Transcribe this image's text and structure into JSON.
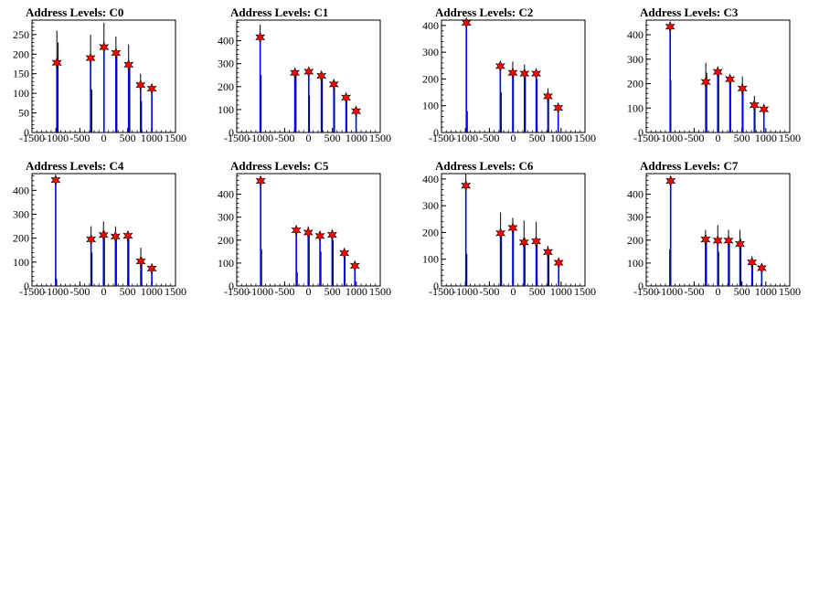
{
  "chart_data": [
    {
      "type": "bar",
      "title": "Address Levels: C0",
      "xlim": [
        -1500,
        1500
      ],
      "ylim": [
        0,
        287
      ],
      "yticks": [
        0,
        50,
        100,
        150,
        200,
        250
      ],
      "xticks": [
        -1500,
        -1000,
        -500,
        0,
        500,
        1000,
        1500
      ],
      "black_spikes": [
        [
          -980,
          260
        ],
        [
          -955,
          230
        ],
        [
          -275,
          250
        ],
        [
          -250,
          110
        ],
        [
          5,
          280
        ],
        [
          10,
          175
        ],
        [
          255,
          245
        ],
        [
          275,
          205
        ],
        [
          520,
          225
        ],
        [
          545,
          175
        ],
        [
          770,
          150
        ],
        [
          790,
          80
        ],
        [
          1005,
          105
        ]
      ],
      "blue_spikes": [
        [
          -980,
          175
        ],
        [
          -275,
          185
        ],
        [
          5,
          215
        ],
        [
          255,
          200
        ],
        [
          520,
          170
        ],
        [
          770,
          120
        ],
        [
          1005,
          110
        ]
      ],
      "peaks": [
        [
          -980,
          178
        ],
        [
          -275,
          190
        ],
        [
          5,
          218
        ],
        [
          255,
          203
        ],
        [
          520,
          173
        ],
        [
          770,
          121
        ],
        [
          1005,
          112
        ]
      ],
      "colors": {
        "black": "#000000",
        "blue": "#0000ff",
        "star": "#ff0000"
      }
    },
    {
      "type": "bar",
      "title": "Address Levels: C1",
      "xlim": [
        -1500,
        1500
      ],
      "ylim": [
        0,
        490
      ],
      "yticks": [
        0,
        100,
        200,
        300,
        400
      ],
      "xticks": [
        -1500,
        -1000,
        -500,
        0,
        500,
        1000,
        1500
      ],
      "black_spikes": [
        [
          -1010,
          470
        ],
        [
          -990,
          250
        ],
        [
          -285,
          275
        ],
        [
          -260,
          260
        ],
        [
          5,
          270
        ],
        [
          20,
          160
        ],
        [
          270,
          255
        ],
        [
          290,
          240
        ],
        [
          530,
          230
        ],
        [
          545,
          210
        ],
        [
          785,
          165
        ],
        [
          800,
          140
        ],
        [
          995,
          110
        ]
      ],
      "blue_spikes": [
        [
          -1010,
          415
        ],
        [
          -285,
          260
        ],
        [
          5,
          260
        ],
        [
          270,
          250
        ],
        [
          530,
          210
        ],
        [
          785,
          150
        ],
        [
          995,
          90
        ]
      ],
      "peaks": [
        [
          -1010,
          415
        ],
        [
          -285,
          260
        ],
        [
          5,
          265
        ],
        [
          270,
          247
        ],
        [
          530,
          210
        ],
        [
          785,
          152
        ],
        [
          995,
          93
        ]
      ],
      "colors": {
        "black": "#000000",
        "blue": "#0000ff",
        "star": "#ff0000"
      }
    },
    {
      "type": "bar",
      "title": "Address Levels: C2",
      "xlim": [
        -1500,
        1500
      ],
      "ylim": [
        0,
        420
      ],
      "yticks": [
        0,
        100,
        200,
        300,
        400
      ],
      "xticks": [
        -1500,
        -1000,
        -500,
        0,
        500,
        1000,
        1500
      ],
      "black_spikes": [
        [
          -980,
          420
        ],
        [
          -960,
          80
        ],
        [
          -270,
          255
        ],
        [
          -250,
          150
        ],
        [
          -10,
          265
        ],
        [
          5,
          230
        ],
        [
          235,
          255
        ],
        [
          255,
          210
        ],
        [
          480,
          235
        ],
        [
          500,
          200
        ],
        [
          725,
          165
        ],
        [
          740,
          130
        ],
        [
          940,
          100
        ]
      ],
      "blue_spikes": [
        [
          -980,
          405
        ],
        [
          -270,
          245
        ],
        [
          -10,
          220
        ],
        [
          235,
          215
        ],
        [
          480,
          215
        ],
        [
          725,
          130
        ],
        [
          940,
          90
        ]
      ],
      "peaks": [
        [
          -980,
          410
        ],
        [
          -270,
          248
        ],
        [
          -10,
          223
        ],
        [
          235,
          220
        ],
        [
          480,
          220
        ],
        [
          725,
          135
        ],
        [
          940,
          92
        ]
      ],
      "colors": {
        "black": "#000000",
        "blue": "#0000ff",
        "star": "#ff0000"
      }
    },
    {
      "type": "bar",
      "title": "Address Levels: C3",
      "xlim": [
        -1500,
        1500
      ],
      "ylim": [
        0,
        460
      ],
      "yticks": [
        0,
        100,
        200,
        300,
        400
      ],
      "xticks": [
        -1500,
        -1000,
        -500,
        0,
        500,
        1000,
        1500
      ],
      "black_spikes": [
        [
          -1000,
          445
        ],
        [
          -985,
          215
        ],
        [
          -255,
          285
        ],
        [
          -235,
          245
        ],
        [
          -5,
          270
        ],
        [
          15,
          240
        ],
        [
          250,
          235
        ],
        [
          265,
          210
        ],
        [
          510,
          230
        ],
        [
          525,
          175
        ],
        [
          760,
          150
        ],
        [
          775,
          120
        ],
        [
          960,
          110
        ]
      ],
      "blue_spikes": [
        [
          -1000,
          430
        ],
        [
          -255,
          205
        ],
        [
          -5,
          245
        ],
        [
          250,
          215
        ],
        [
          510,
          180
        ],
        [
          760,
          110
        ],
        [
          960,
          95
        ]
      ],
      "peaks": [
        [
          -1000,
          433
        ],
        [
          -255,
          207
        ],
        [
          -5,
          248
        ],
        [
          250,
          218
        ],
        [
          510,
          180
        ],
        [
          760,
          112
        ],
        [
          960,
          95
        ]
      ],
      "colors": {
        "black": "#000000",
        "blue": "#0000ff",
        "star": "#ff0000"
      }
    },
    {
      "type": "bar",
      "title": "Address Levels: C4",
      "xlim": [
        -1500,
        1500
      ],
      "ylim": [
        0,
        470
      ],
      "yticks": [
        0,
        100,
        200,
        300,
        400
      ],
      "xticks": [
        -1500,
        -1000,
        -500,
        0,
        500,
        1000,
        1500
      ],
      "black_spikes": [
        [
          -1005,
          450
        ],
        [
          -985,
          30
        ],
        [
          -265,
          250
        ],
        [
          -245,
          140
        ],
        [
          -5,
          270
        ],
        [
          15,
          230
        ],
        [
          245,
          250
        ],
        [
          265,
          210
        ],
        [
          505,
          230
        ],
        [
          525,
          200
        ],
        [
          775,
          160
        ],
        [
          795,
          120
        ],
        [
          1005,
          90
        ]
      ],
      "blue_spikes": [
        [
          -1005,
          440
        ],
        [
          -265,
          195
        ],
        [
          -5,
          210
        ],
        [
          245,
          205
        ],
        [
          505,
          210
        ],
        [
          775,
          100
        ],
        [
          1005,
          70
        ]
      ],
      "peaks": [
        [
          -1005,
          443
        ],
        [
          -265,
          195
        ],
        [
          -5,
          213
        ],
        [
          245,
          207
        ],
        [
          505,
          210
        ],
        [
          775,
          103
        ],
        [
          1005,
          73
        ]
      ],
      "colors": {
        "black": "#000000",
        "blue": "#0000ff",
        "star": "#ff0000"
      }
    },
    {
      "type": "bar",
      "title": "Address Levels: C5",
      "xlim": [
        -1500,
        1500
      ],
      "ylim": [
        0,
        490
      ],
      "yticks": [
        0,
        100,
        200,
        300,
        400
      ],
      "xticks": [
        -1500,
        -1000,
        -500,
        0,
        500,
        1000,
        1500
      ],
      "black_spikes": [
        [
          -1000,
          475
        ],
        [
          -980,
          160
        ],
        [
          -255,
          255
        ],
        [
          -235,
          60
        ],
        [
          -5,
          260
        ],
        [
          15,
          230
        ],
        [
          240,
          240
        ],
        [
          260,
          150
        ],
        [
          495,
          245
        ],
        [
          515,
          200
        ],
        [
          750,
          160
        ],
        [
          765,
          130
        ],
        [
          970,
          100
        ]
      ],
      "blue_spikes": [
        [
          -1000,
          455
        ],
        [
          -255,
          240
        ],
        [
          -5,
          230
        ],
        [
          240,
          215
        ],
        [
          495,
          220
        ],
        [
          750,
          140
        ],
        [
          970,
          85
        ]
      ],
      "peaks": [
        [
          -1000,
          458
        ],
        [
          -255,
          243
        ],
        [
          -5,
          233
        ],
        [
          240,
          218
        ],
        [
          495,
          223
        ],
        [
          750,
          143
        ],
        [
          970,
          88
        ]
      ],
      "colors": {
        "black": "#000000",
        "blue": "#0000ff",
        "star": "#ff0000"
      }
    },
    {
      "type": "bar",
      "title": "Address Levels: C6",
      "xlim": [
        -1500,
        1500
      ],
      "ylim": [
        0,
        420
      ],
      "yticks": [
        0,
        100,
        200,
        300,
        400
      ],
      "xticks": [
        -1500,
        -1000,
        -500,
        0,
        500,
        1000,
        1500
      ],
      "black_spikes": [
        [
          -990,
          420
        ],
        [
          -970,
          120
        ],
        [
          -265,
          275
        ],
        [
          -245,
          200
        ],
        [
          -10,
          255
        ],
        [
          5,
          230
        ],
        [
          225,
          245
        ],
        [
          245,
          180
        ],
        [
          480,
          240
        ],
        [
          500,
          170
        ],
        [
          725,
          150
        ],
        [
          745,
          125
        ],
        [
          950,
          100
        ]
      ],
      "blue_spikes": [
        [
          -990,
          370
        ],
        [
          -265,
          195
        ],
        [
          -10,
          215
        ],
        [
          225,
          160
        ],
        [
          480,
          165
        ],
        [
          725,
          125
        ],
        [
          950,
          85
        ]
      ],
      "peaks": [
        [
          -990,
          375
        ],
        [
          -265,
          197
        ],
        [
          -10,
          217
        ],
        [
          225,
          163
        ],
        [
          480,
          167
        ],
        [
          725,
          127
        ],
        [
          950,
          87
        ]
      ],
      "colors": {
        "black": "#000000",
        "blue": "#0000ff",
        "star": "#ff0000"
      }
    },
    {
      "type": "bar",
      "title": "Address Levels: C7",
      "xlim": [
        -1500,
        1500
      ],
      "ylim": [
        0,
        490
      ],
      "yticks": [
        0,
        100,
        200,
        300,
        400
      ],
      "xticks": [
        -1500,
        -1000,
        -500,
        0,
        500,
        1000,
        1500
      ],
      "black_spikes": [
        [
          -990,
          460
        ],
        [
          -1010,
          160
        ],
        [
          -260,
          245
        ],
        [
          -240,
          210
        ],
        [
          -5,
          265
        ],
        [
          15,
          150
        ],
        [
          220,
          245
        ],
        [
          240,
          210
        ],
        [
          460,
          245
        ],
        [
          480,
          205
        ],
        [
          710,
          130
        ],
        [
          725,
          110
        ],
        [
          915,
          95
        ]
      ],
      "blue_spikes": [
        [
          -990,
          455
        ],
        [
          -260,
          200
        ],
        [
          -5,
          195
        ],
        [
          220,
          195
        ],
        [
          460,
          180
        ],
        [
          710,
          100
        ],
        [
          915,
          75
        ]
      ],
      "peaks": [
        [
          -990,
          458
        ],
        [
          -260,
          203
        ],
        [
          -5,
          198
        ],
        [
          220,
          198
        ],
        [
          460,
          183
        ],
        [
          710,
          103
        ],
        [
          915,
          78
        ]
      ],
      "colors": {
        "black": "#000000",
        "blue": "#0000ff",
        "star": "#ff0000"
      }
    }
  ]
}
